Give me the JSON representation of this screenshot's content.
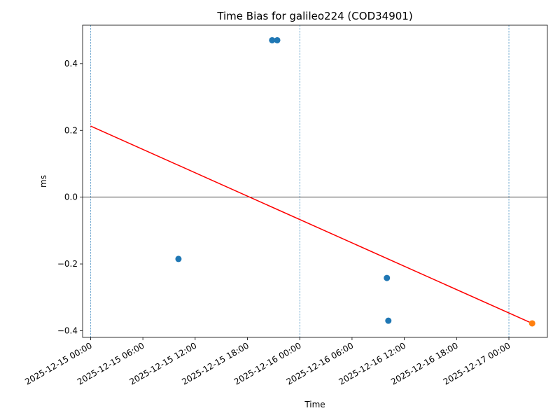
{
  "chart_data": {
    "type": "scatter",
    "title": "Time Bias for galileo224 (COD34901)",
    "xlabel": "Time",
    "ylabel": "ms",
    "x_axis_type": "datetime",
    "xlim": [
      "2025-12-14T23:05",
      "2025-12-17T04:25"
    ],
    "ylim": [
      -0.42,
      0.515
    ],
    "x_ticks": [
      {
        "value": "2025-12-15T00:00",
        "label": "2025-12-15 00:00"
      },
      {
        "value": "2025-12-15T06:00",
        "label": "2025-12-15 06:00"
      },
      {
        "value": "2025-12-15T12:00",
        "label": "2025-12-15 12:00"
      },
      {
        "value": "2025-12-15T18:00",
        "label": "2025-12-15 18:00"
      },
      {
        "value": "2025-12-16T00:00",
        "label": "2025-12-16 00:00"
      },
      {
        "value": "2025-12-16T06:00",
        "label": "2025-12-16 06:00"
      },
      {
        "value": "2025-12-16T12:00",
        "label": "2025-12-16 12:00"
      },
      {
        "value": "2025-12-16T18:00",
        "label": "2025-12-16 18:00"
      },
      {
        "value": "2025-12-17T00:00",
        "label": "2025-12-17 00:00"
      }
    ],
    "y_ticks": [
      {
        "value": -0.4,
        "label": "−0.4"
      },
      {
        "value": -0.2,
        "label": "−0.2"
      },
      {
        "value": 0.0,
        "label": "0.0"
      },
      {
        "value": 0.2,
        "label": "0.2"
      },
      {
        "value": 0.4,
        "label": "0.4"
      }
    ],
    "vertical_lines": [
      "2025-12-15T00:00",
      "2025-12-16T00:00",
      "2025-12-17T00:00"
    ],
    "horizontal_line": 0.0,
    "series": [
      {
        "type": "scatter",
        "color": "#1f77b4",
        "points": [
          {
            "x": "2025-12-15T10:05",
            "y": -0.185
          },
          {
            "x": "2025-12-15T20:50",
            "y": 0.47
          },
          {
            "x": "2025-12-15T21:25",
            "y": 0.47
          },
          {
            "x": "2025-12-16T10:00",
            "y": -0.242
          },
          {
            "x": "2025-12-16T10:10",
            "y": -0.37
          }
        ]
      },
      {
        "type": "scatter",
        "color": "#ff7f0e",
        "points": [
          {
            "x": "2025-12-17T02:40",
            "y": -0.378
          }
        ]
      },
      {
        "type": "line",
        "color": "#ff0000",
        "points": [
          {
            "x": "2025-12-15T00:00",
            "y": 0.213
          },
          {
            "x": "2025-12-17T02:40",
            "y": -0.378
          }
        ]
      }
    ]
  }
}
